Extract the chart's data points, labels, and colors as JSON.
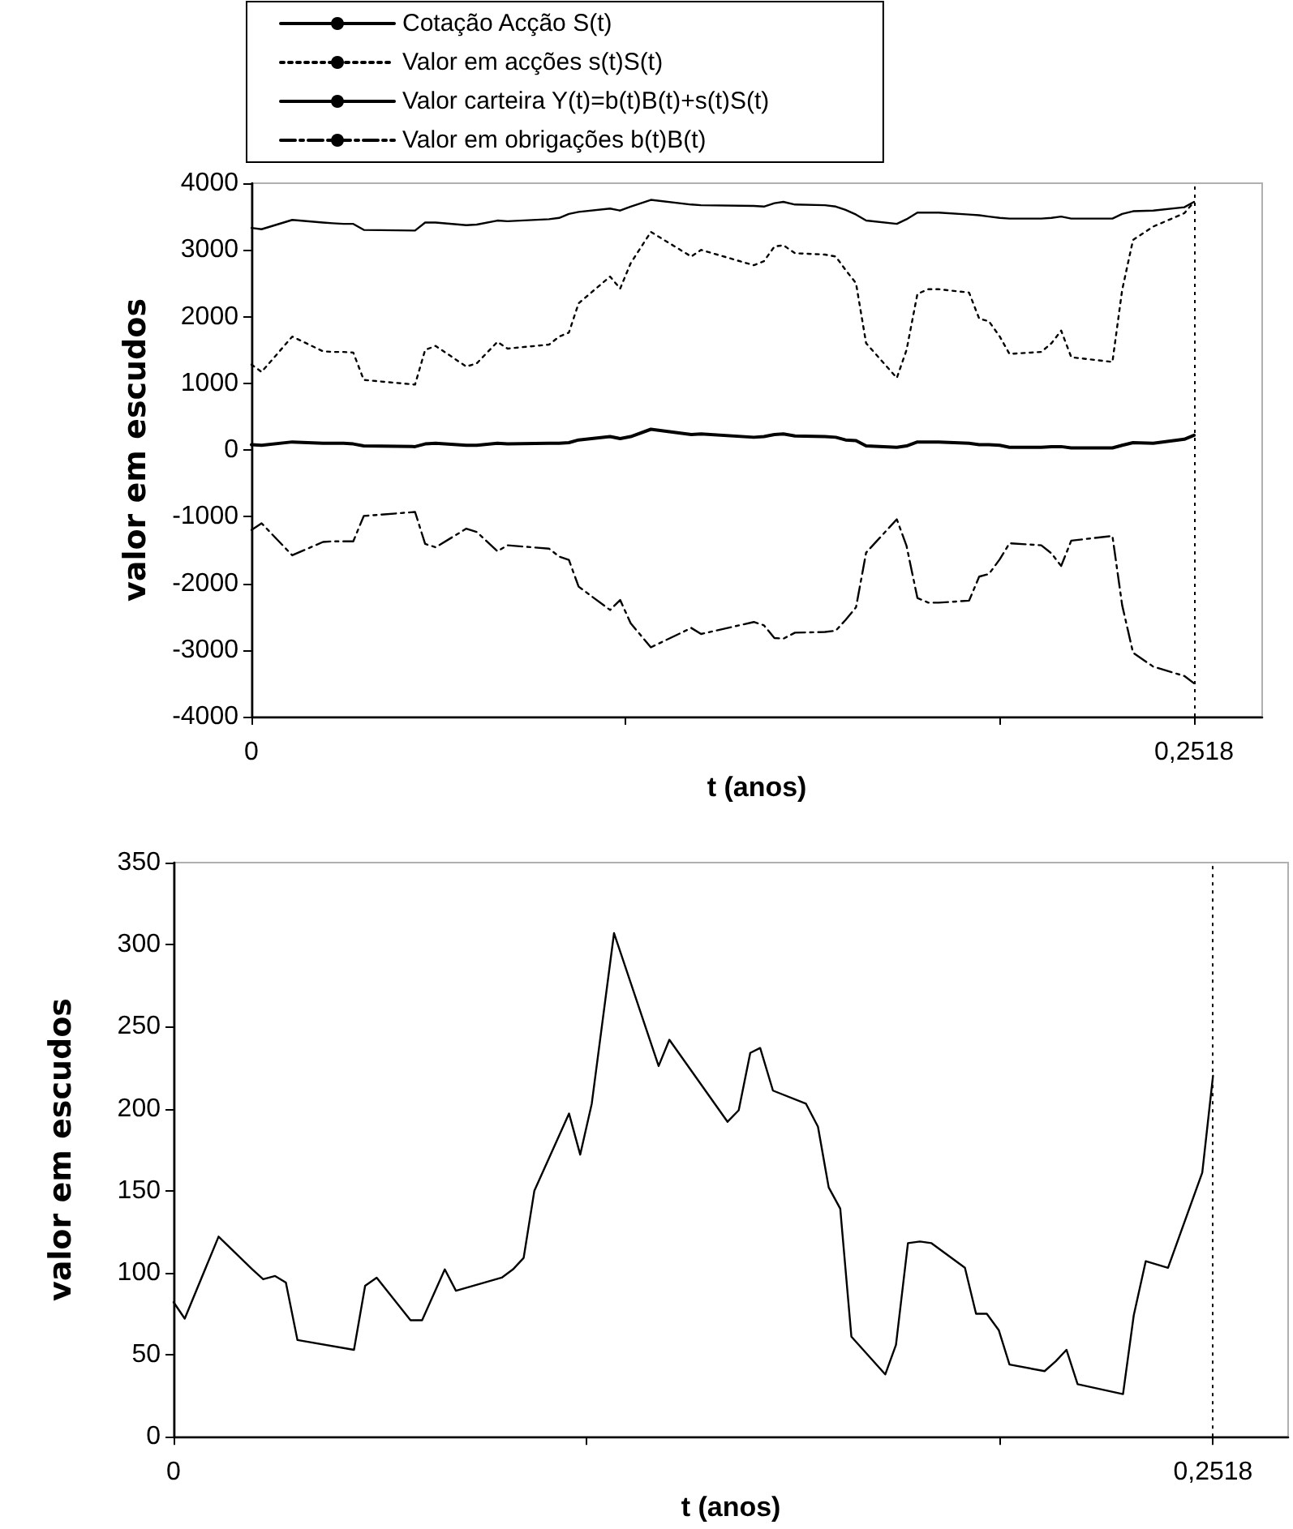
{
  "chart_data": [
    {
      "type": "line",
      "xlabel": "t (anos)",
      "ylabel": "valor em escudos",
      "legend": "top",
      "grid": false,
      "marker": "none",
      "x": [
        0,
        0.0027,
        0.0109,
        0.0191,
        0.0217,
        0.0246,
        0.0272,
        0.03,
        0.0437,
        0.0464,
        0.0492,
        0.0574,
        0.0602,
        0.0657,
        0.0684,
        0.0795,
        0.0822,
        0.0848,
        0.0874,
        0.0958,
        0.0985,
        0.1013,
        0.1067,
        0.1175,
        0.1201,
        0.1342,
        0.1369,
        0.1397,
        0.1421,
        0.1452,
        0.1532,
        0.1561,
        0.1587,
        0.1615,
        0.1642,
        0.1724,
        0.175,
        0.1779,
        0.1808,
        0.1836,
        0.1917,
        0.1944,
        0.197,
        0.1999,
        0.2025,
        0.211,
        0.2137,
        0.2163,
        0.219,
        0.23,
        0.2326,
        0.2355,
        0.2409,
        0.2492,
        0.2518
      ],
      "xlim": [
        0,
        0.27
      ],
      "xticks": [
        0,
        {
          "value": 0.1,
          "label": null
        },
        {
          "value": 0.2,
          "label": null
        },
        {
          "value": 0.2518,
          "label": "0,2518"
        }
      ],
      "ylim": [
        -4000,
        4000
      ],
      "yticks": [
        -4000,
        -3000,
        -2000,
        -1000,
        0,
        1000,
        2000,
        3000,
        4000
      ],
      "ref_lines": [
        {
          "axis": "x",
          "value": 0.2518,
          "line_style": "dotted",
          "color": "#000000"
        }
      ],
      "series": [
        {
          "name": "Cotação Acção S(t)",
          "color": "#000000",
          "line_style": "solid",
          "values": [
            3330,
            3310,
            3450,
            3410,
            3400,
            3390,
            3390,
            3300,
            3290,
            3410,
            3410,
            3370,
            3380,
            3440,
            3430,
            3460,
            3480,
            3540,
            3570,
            3620,
            3590,
            3650,
            3750,
            3680,
            3670,
            3660,
            3650,
            3700,
            3720,
            3680,
            3670,
            3650,
            3600,
            3530,
            3440,
            3390,
            3460,
            3560,
            3560,
            3560,
            3530,
            3520,
            3500,
            3480,
            3470,
            3470,
            3480,
            3500,
            3470,
            3470,
            3540,
            3580,
            3590,
            3640,
            3720
          ]
        },
        {
          "name": "Valor em acções s(t)S(t)",
          "color": "#000000",
          "line_style": "dotted",
          "values": [
            1280,
            1170,
            1700,
            1480,
            1470,
            1470,
            1460,
            1050,
            980,
            1500,
            1560,
            1250,
            1300,
            1620,
            1520,
            1580,
            1700,
            1760,
            2200,
            2600,
            2420,
            2800,
            3270,
            2900,
            3000,
            2770,
            2830,
            3050,
            3070,
            2950,
            2930,
            2900,
            2700,
            2500,
            1600,
            1080,
            1500,
            2340,
            2410,
            2410,
            2360,
            1970,
            1930,
            1700,
            1440,
            1470,
            1600,
            1790,
            1390,
            1320,
            2400,
            3150,
            3350,
            3550,
            3720
          ]
        },
        {
          "name": "Valor carteira Y(t)=b(t)B(t)+s(t)S(t)",
          "color": "#000000",
          "line_style": "solid",
          "values": [
            80,
            70,
            120,
            100,
            100,
            100,
            90,
            60,
            50,
            90,
            100,
            70,
            70,
            100,
            90,
            100,
            100,
            110,
            150,
            200,
            170,
            200,
            310,
            230,
            240,
            190,
            200,
            230,
            240,
            210,
            200,
            190,
            150,
            140,
            60,
            40,
            60,
            120,
            120,
            120,
            100,
            80,
            80,
            70,
            40,
            40,
            50,
            50,
            30,
            30,
            70,
            110,
            100,
            160,
            220
          ]
        },
        {
          "name": "Valor em obrigações b(t)B(t)",
          "color": "#000000",
          "line_style": "dashed",
          "values": [
            -1200,
            -1100,
            -1580,
            -1380,
            -1370,
            -1370,
            -1370,
            -990,
            -930,
            -1410,
            -1460,
            -1180,
            -1230,
            -1520,
            -1430,
            -1480,
            -1600,
            -1650,
            -2050,
            -2400,
            -2250,
            -2600,
            -2960,
            -2670,
            -2760,
            -2580,
            -2630,
            -2820,
            -2830,
            -2740,
            -2730,
            -2710,
            -2550,
            -2360,
            -1540,
            -1040,
            -1440,
            -2220,
            -2290,
            -2290,
            -2260,
            -1900,
            -1860,
            -1640,
            -1400,
            -1430,
            -1550,
            -1740,
            -1360,
            -1290,
            -2330,
            -3040,
            -3250,
            -3390,
            -3500
          ]
        }
      ]
    },
    {
      "type": "line",
      "xlabel": "t (anos)",
      "ylabel": "valor em escudos",
      "legend": false,
      "grid": false,
      "marker": "none",
      "x": [
        0,
        0.0027,
        0.0109,
        0.0191,
        0.0217,
        0.0246,
        0.0272,
        0.03,
        0.0437,
        0.0464,
        0.0492,
        0.0574,
        0.0602,
        0.0657,
        0.0684,
        0.0795,
        0.0822,
        0.0848,
        0.0874,
        0.0958,
        0.0985,
        0.1013,
        0.1067,
        0.1175,
        0.1201,
        0.1342,
        0.1369,
        0.1397,
        0.1421,
        0.1452,
        0.1532,
        0.1561,
        0.1587,
        0.1615,
        0.1642,
        0.1724,
        0.175,
        0.1779,
        0.1808,
        0.1836,
        0.1917,
        0.1944,
        0.197,
        0.1999,
        0.2025,
        0.211,
        0.2137,
        0.2163,
        0.219,
        0.23,
        0.2326,
        0.2355,
        0.2409,
        0.2492,
        0.2518
      ],
      "xlim": [
        0,
        0.27
      ],
      "xticks": [
        0,
        {
          "value": 0.1,
          "label": null
        },
        {
          "value": 0.2,
          "label": null
        },
        {
          "value": 0.2518,
          "label": "0,2518"
        }
      ],
      "ylim": [
        0,
        350
      ],
      "yticks": [
        0,
        50,
        100,
        150,
        200,
        250,
        300,
        350
      ],
      "ref_lines": [
        {
          "axis": "x",
          "value": 0.2518,
          "line_style": "dotted",
          "color": "#000000"
        }
      ],
      "series": [
        {
          "color": "#000000",
          "line_style": "solid",
          "values": [
            82,
            72,
            122,
            102,
            96,
            98,
            94,
            59,
            53,
            92,
            97,
            71,
            71,
            102,
            89,
            97,
            102,
            109,
            150,
            197,
            172,
            203,
            307,
            226,
            242,
            192,
            199,
            234,
            237,
            211,
            203,
            189,
            152,
            139,
            61,
            38,
            56,
            118,
            119,
            118,
            103,
            75,
            75,
            65,
            44,
            40,
            46,
            53,
            32,
            26,
            74,
            107,
            103,
            161,
            220
          ]
        }
      ]
    }
  ]
}
